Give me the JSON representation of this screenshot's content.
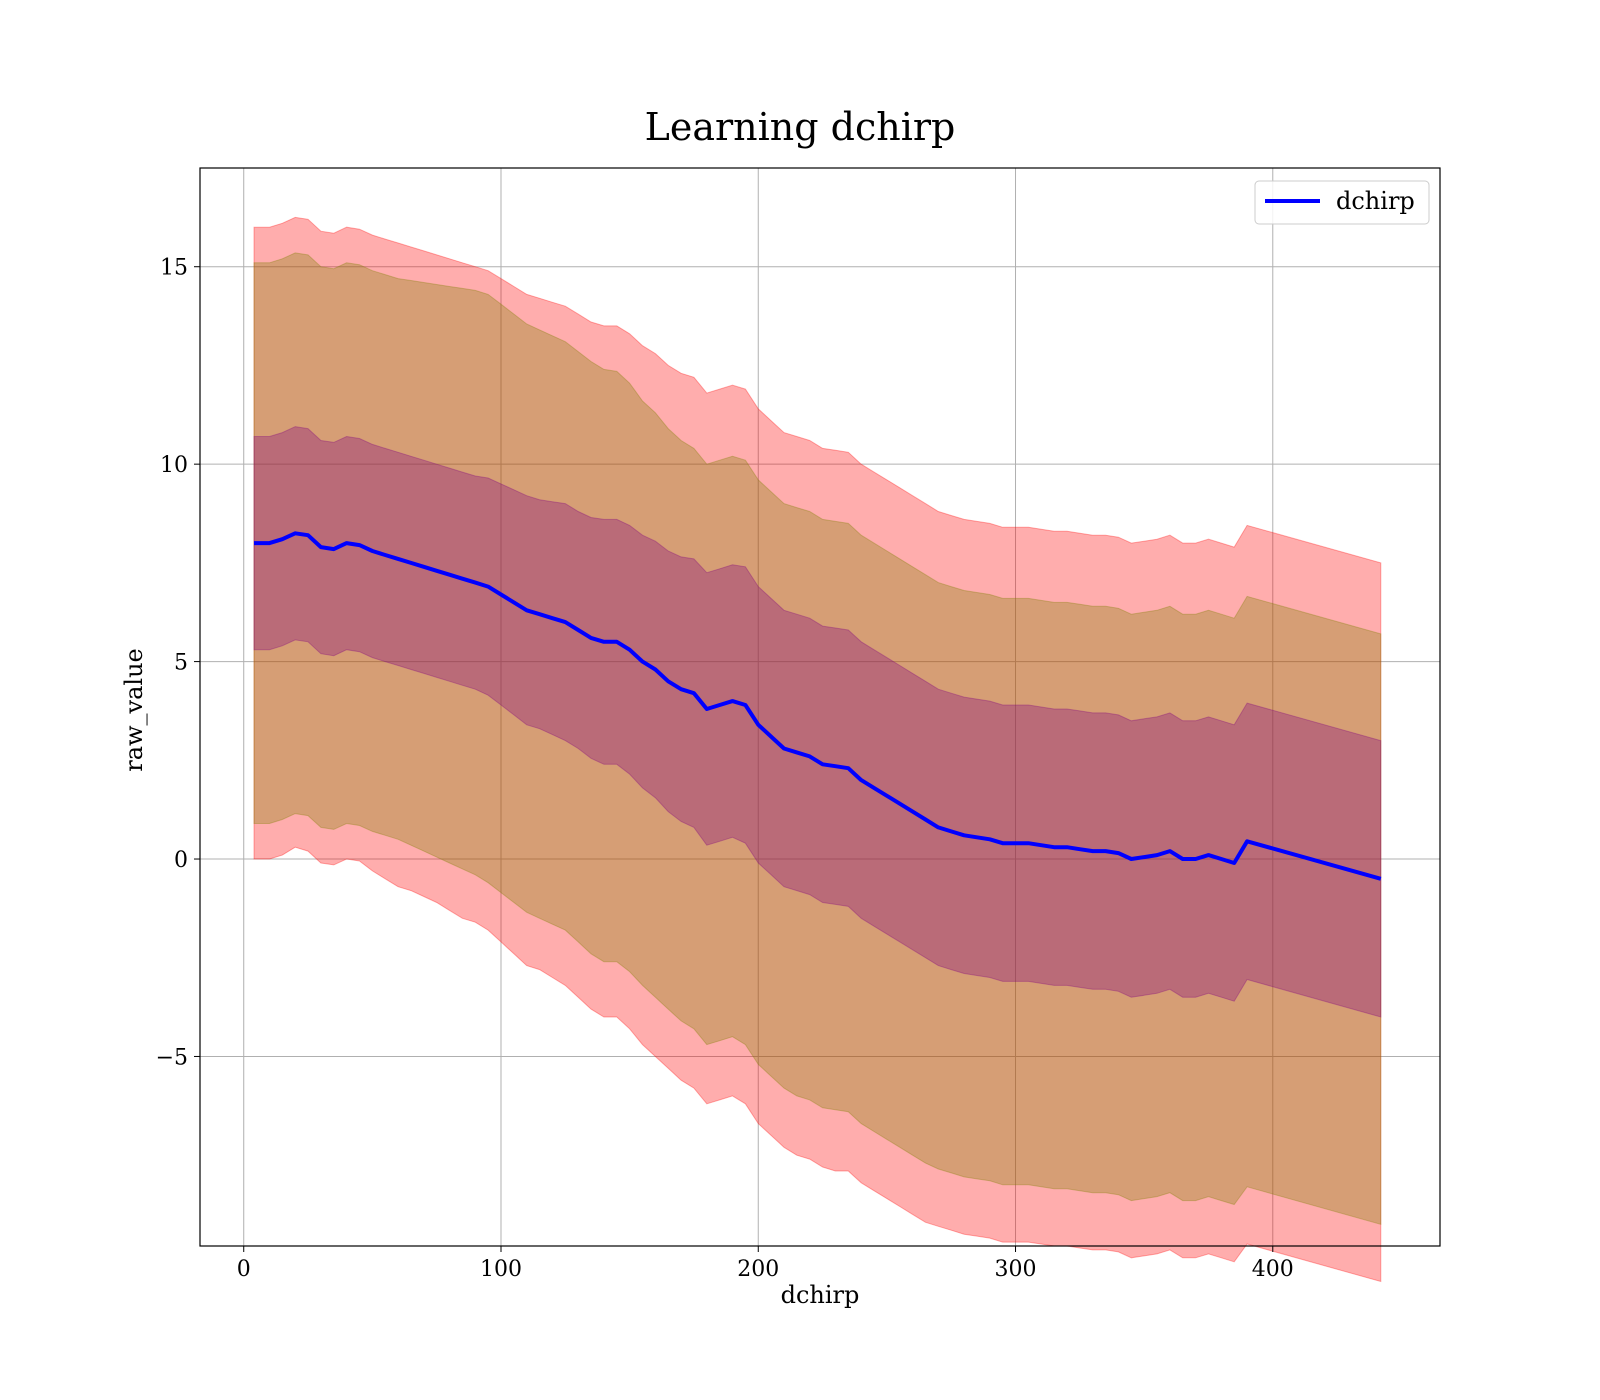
{
  "chart_data": {
    "type": "line",
    "title": "Learning dchirp",
    "xlabel": "dchirp",
    "ylabel": "raw_value",
    "xlim": [
      -17,
      465
    ],
    "ylim": [
      -9.8,
      17.5
    ],
    "xticks": [
      0,
      100,
      200,
      300,
      400
    ],
    "yticks": [
      -5,
      0,
      5,
      10,
      15
    ],
    "xtick_labels": [
      "0",
      "100",
      "200",
      "300",
      "400"
    ],
    "ytick_labels": [
      "−5",
      "0",
      "5",
      "10",
      "15"
    ],
    "grid": true,
    "legend_position": "top-right",
    "series": [
      {
        "name": "dchirp",
        "color": "#0000ff",
        "x": [
          4,
          10,
          15,
          20,
          25,
          30,
          35,
          40,
          45,
          50,
          55,
          60,
          65,
          70,
          75,
          80,
          85,
          90,
          95,
          100,
          105,
          110,
          115,
          120,
          125,
          130,
          135,
          140,
          145,
          150,
          155,
          160,
          165,
          170,
          175,
          180,
          185,
          190,
          195,
          200,
          205,
          210,
          215,
          220,
          225,
          230,
          235,
          240,
          245,
          250,
          255,
          260,
          265,
          270,
          275,
          280,
          285,
          290,
          295,
          300,
          305,
          310,
          315,
          320,
          325,
          330,
          335,
          340,
          345,
          350,
          355,
          360,
          365,
          370,
          375,
          380,
          385,
          390,
          442
        ],
        "y": [
          8.0,
          8.0,
          8.1,
          8.25,
          8.2,
          7.9,
          7.85,
          8.0,
          7.95,
          7.8,
          7.7,
          7.6,
          7.5,
          7.4,
          7.3,
          7.2,
          7.1,
          7.0,
          6.9,
          6.7,
          6.5,
          6.3,
          6.2,
          6.1,
          6.0,
          5.8,
          5.6,
          5.5,
          5.5,
          5.3,
          5.0,
          4.8,
          4.5,
          4.3,
          4.2,
          3.8,
          3.9,
          4.0,
          3.9,
          3.4,
          3.1,
          2.8,
          2.7,
          2.6,
          2.4,
          2.35,
          2.3,
          2.0,
          1.8,
          1.6,
          1.4,
          1.2,
          1.0,
          0.8,
          0.7,
          0.6,
          0.55,
          0.5,
          0.4,
          0.4,
          0.4,
          0.35,
          0.3,
          0.3,
          0.25,
          0.2,
          0.2,
          0.15,
          0.0,
          0.05,
          0.1,
          0.2,
          0.0,
          0.0,
          0.1,
          0.0,
          -0.1,
          0.45,
          -0.5
        ]
      }
    ],
    "bands": [
      {
        "color": "#ff0000",
        "opacity": 0.32,
        "lower": [
          0.0,
          0.0,
          0.1,
          0.3,
          0.2,
          -0.1,
          -0.15,
          0.0,
          -0.05,
          -0.3,
          -0.5,
          -0.7,
          -0.8,
          -0.95,
          -1.1,
          -1.3,
          -1.5,
          -1.6,
          -1.8,
          -2.1,
          -2.4,
          -2.7,
          -2.8,
          -3.0,
          -3.2,
          -3.5,
          -3.8,
          -4.0,
          -4.0,
          -4.3,
          -4.7,
          -5.0,
          -5.3,
          -5.6,
          -5.8,
          -6.2,
          -6.1,
          -6.0,
          -6.2,
          -6.7,
          -7.0,
          -7.3,
          -7.5,
          -7.6,
          -7.8,
          -7.9,
          -7.9,
          -8.2,
          -8.4,
          -8.6,
          -8.8,
          -9.0,
          -9.2,
          -9.3,
          -9.4,
          -9.5,
          -9.55,
          -9.6,
          -9.7,
          -9.7,
          -9.7,
          -9.75,
          -9.8,
          -9.8,
          -9.85,
          -9.9,
          -9.9,
          -9.95,
          -10.1,
          -10.05,
          -10.0,
          -9.9,
          -10.1,
          -10.1,
          -10.0,
          -10.1,
          -10.2,
          -9.75,
          -10.7
        ],
        "upper": [
          16.0,
          16.0,
          16.1,
          16.25,
          16.2,
          15.9,
          15.85,
          16.0,
          15.95,
          15.8,
          15.7,
          15.6,
          15.5,
          15.4,
          15.3,
          15.2,
          15.1,
          15.0,
          14.9,
          14.7,
          14.5,
          14.3,
          14.2,
          14.1,
          14.0,
          13.8,
          13.6,
          13.5,
          13.5,
          13.3,
          13.0,
          12.8,
          12.5,
          12.3,
          12.2,
          11.8,
          11.9,
          12.0,
          11.9,
          11.4,
          11.1,
          10.8,
          10.7,
          10.6,
          10.4,
          10.35,
          10.3,
          10.0,
          9.8,
          9.6,
          9.4,
          9.2,
          9.0,
          8.8,
          8.7,
          8.6,
          8.55,
          8.5,
          8.4,
          8.4,
          8.4,
          8.35,
          8.3,
          8.3,
          8.25,
          8.2,
          8.2,
          8.15,
          8.0,
          8.05,
          8.1,
          8.2,
          8.0,
          8.0,
          8.1,
          8.0,
          7.9,
          8.45,
          7.5
        ]
      },
      {
        "color": "#808000",
        "opacity": 0.32,
        "lower": [
          0.9,
          0.9,
          1.0,
          1.15,
          1.1,
          0.8,
          0.75,
          0.9,
          0.85,
          0.7,
          0.6,
          0.5,
          0.35,
          0.2,
          0.05,
          -0.1,
          -0.25,
          -0.4,
          -0.6,
          -0.85,
          -1.1,
          -1.35,
          -1.5,
          -1.65,
          -1.8,
          -2.1,
          -2.4,
          -2.6,
          -2.6,
          -2.85,
          -3.2,
          -3.5,
          -3.8,
          -4.1,
          -4.3,
          -4.7,
          -4.6,
          -4.5,
          -4.7,
          -5.2,
          -5.5,
          -5.8,
          -6.0,
          -6.1,
          -6.3,
          -6.35,
          -6.4,
          -6.7,
          -6.9,
          -7.1,
          -7.3,
          -7.5,
          -7.7,
          -7.85,
          -7.95,
          -8.05,
          -8.1,
          -8.15,
          -8.25,
          -8.25,
          -8.25,
          -8.3,
          -8.35,
          -8.35,
          -8.4,
          -8.45,
          -8.45,
          -8.5,
          -8.65,
          -8.6,
          -8.55,
          -8.45,
          -8.65,
          -8.65,
          -8.55,
          -8.65,
          -8.75,
          -8.3,
          -9.25
        ],
        "upper": [
          15.1,
          15.1,
          15.2,
          15.35,
          15.3,
          15.0,
          14.95,
          15.1,
          15.05,
          14.9,
          14.8,
          14.7,
          14.65,
          14.6,
          14.55,
          14.5,
          14.45,
          14.4,
          14.3,
          14.05,
          13.8,
          13.55,
          13.4,
          13.25,
          13.1,
          12.85,
          12.6,
          12.4,
          12.35,
          12.05,
          11.6,
          11.3,
          10.9,
          10.6,
          10.4,
          10.0,
          10.1,
          10.2,
          10.1,
          9.6,
          9.3,
          9.0,
          8.9,
          8.8,
          8.6,
          8.55,
          8.5,
          8.2,
          8.0,
          7.8,
          7.6,
          7.4,
          7.2,
          7.0,
          6.9,
          6.8,
          6.75,
          6.7,
          6.6,
          6.6,
          6.6,
          6.55,
          6.5,
          6.5,
          6.45,
          6.4,
          6.4,
          6.35,
          6.2,
          6.25,
          6.3,
          6.4,
          6.2,
          6.2,
          6.3,
          6.2,
          6.1,
          6.65,
          5.7
        ]
      },
      {
        "color": "#800080",
        "opacity": 0.32,
        "lower": [
          5.3,
          5.3,
          5.4,
          5.55,
          5.5,
          5.2,
          5.15,
          5.3,
          5.25,
          5.1,
          5.0,
          4.9,
          4.8,
          4.7,
          4.6,
          4.5,
          4.4,
          4.3,
          4.15,
          3.9,
          3.65,
          3.4,
          3.3,
          3.15,
          3.0,
          2.8,
          2.55,
          2.4,
          2.4,
          2.15,
          1.8,
          1.55,
          1.2,
          0.95,
          0.8,
          0.35,
          0.45,
          0.55,
          0.4,
          -0.1,
          -0.4,
          -0.7,
          -0.8,
          -0.9,
          -1.1,
          -1.15,
          -1.2,
          -1.5,
          -1.7,
          -1.9,
          -2.1,
          -2.3,
          -2.5,
          -2.7,
          -2.8,
          -2.9,
          -2.95,
          -3.0,
          -3.1,
          -3.1,
          -3.1,
          -3.15,
          -3.2,
          -3.2,
          -3.25,
          -3.3,
          -3.3,
          -3.35,
          -3.5,
          -3.45,
          -3.4,
          -3.3,
          -3.5,
          -3.5,
          -3.4,
          -3.5,
          -3.6,
          -3.05,
          -4.0
        ],
        "upper": [
          10.7,
          10.7,
          10.8,
          10.95,
          10.9,
          10.6,
          10.55,
          10.7,
          10.65,
          10.5,
          10.4,
          10.3,
          10.2,
          10.1,
          10.0,
          9.9,
          9.8,
          9.7,
          9.65,
          9.5,
          9.35,
          9.2,
          9.1,
          9.05,
          9.0,
          8.8,
          8.65,
          8.6,
          8.6,
          8.45,
          8.2,
          8.05,
          7.8,
          7.65,
          7.6,
          7.25,
          7.35,
          7.45,
          7.4,
          6.9,
          6.6,
          6.3,
          6.2,
          6.1,
          5.9,
          5.85,
          5.8,
          5.5,
          5.3,
          5.1,
          4.9,
          4.7,
          4.5,
          4.3,
          4.2,
          4.1,
          4.05,
          4.0,
          3.9,
          3.9,
          3.9,
          3.85,
          3.8,
          3.8,
          3.75,
          3.7,
          3.7,
          3.65,
          3.5,
          3.55,
          3.6,
          3.7,
          3.5,
          3.5,
          3.6,
          3.5,
          3.4,
          3.95,
          3.0
        ]
      }
    ]
  }
}
